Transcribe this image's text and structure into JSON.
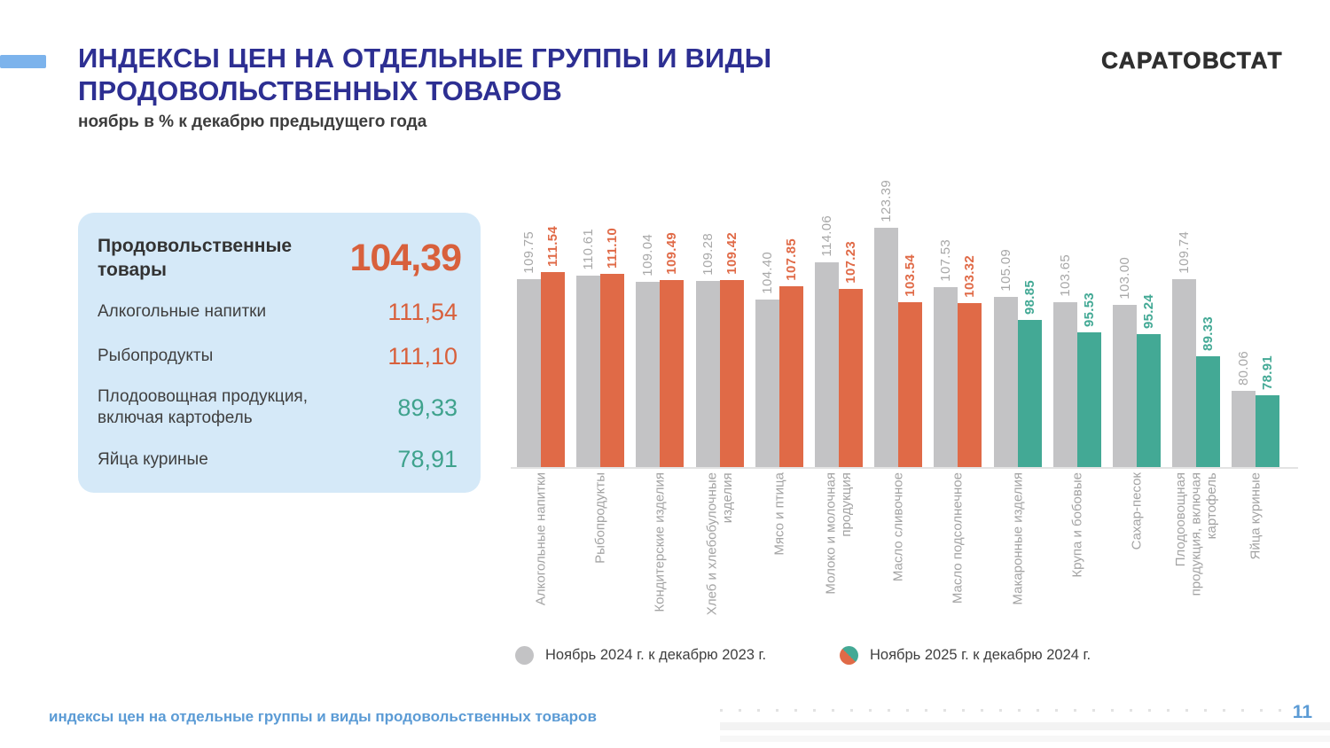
{
  "header": {
    "title": "ИНДЕКСЫ ЦЕН НА ОТДЕЛЬНЫЕ ГРУППЫ И ВИДЫ\nПРОДОВОЛЬСТВЕННЫХ ТОВАРОВ",
    "subtitle": "ноябрь в % к декабрю предыдущего года",
    "logo": "САРАТОВСТАТ"
  },
  "summary_card": {
    "hero": {
      "label": "Продовольственные\nтовары",
      "value": "104,39",
      "color": "#D8603C"
    },
    "rows": [
      {
        "label": "Алкогольные напитки",
        "value": "111,54",
        "color": "#D8603C"
      },
      {
        "label": "Рыбопродукты",
        "value": "111,10",
        "color": "#D8603C"
      },
      {
        "label": "Плодоовощная продукция,\nвключая картофель",
        "value": "89,33",
        "color": "#3FA28D"
      },
      {
        "label": "Яйца куриные",
        "value": "78,91",
        "color": "#3FA28D"
      }
    ]
  },
  "chart_data": {
    "type": "bar",
    "categories": [
      "Алкогольные напитки",
      "Рыбопродукты",
      "Кондитерские изделия",
      "Хлеб и хлебобулочные\nизделия",
      "Мясо и птица",
      "Молоко и молочная\nпродукция",
      "Масло сливочное",
      "Масло подсолнечное",
      "Макаронные изделия",
      "Крупа и бобовые",
      "Сахар-песок",
      "Плодоовощная\nпродукция, включая\nкартофель",
      "Яйца куриные"
    ],
    "series": [
      {
        "name": "Ноябрь 2024 г. к декабрю 2023 г.",
        "color": "#C3C3C5",
        "label_color": "#A8A8A8",
        "values": [
          109.75,
          110.61,
          109.04,
          109.28,
          104.4,
          114.06,
          123.39,
          107.53,
          105.09,
          103.65,
          103.0,
          109.74,
          80.06
        ]
      },
      {
        "name": "Ноябрь 2025 г. к декабрю 2024 г.",
        "color_above_100": "#E06A47",
        "color_below_100": "#43A995",
        "threshold": 100,
        "values": [
          111.54,
          111.1,
          109.49,
          109.42,
          107.85,
          107.23,
          103.54,
          103.32,
          98.85,
          95.53,
          95.24,
          89.33,
          78.91
        ]
      }
    ],
    "value_label_decimals": 2,
    "ylim": [
      60,
      139
    ],
    "grid": false,
    "legend_position": "bottom"
  },
  "footer": {
    "text": "индексы цен на отдельные группы и виды продовольственных товаров",
    "page": "11"
  },
  "colors": {
    "accent_bar": "#7CB3EC",
    "title": "#2D2F92",
    "subtitle": "#3D3D3D",
    "logo": "#2F2F2F",
    "card_bg": "#D5E9F8",
    "orange": "#E06A47",
    "green": "#43A995",
    "gray_bar": "#C3C3C5",
    "gray_label": "#A8A8A8",
    "category_label": "#A3A3A3",
    "legend_text": "#3F3F3F",
    "footer_blue": "#5B9BD5"
  }
}
